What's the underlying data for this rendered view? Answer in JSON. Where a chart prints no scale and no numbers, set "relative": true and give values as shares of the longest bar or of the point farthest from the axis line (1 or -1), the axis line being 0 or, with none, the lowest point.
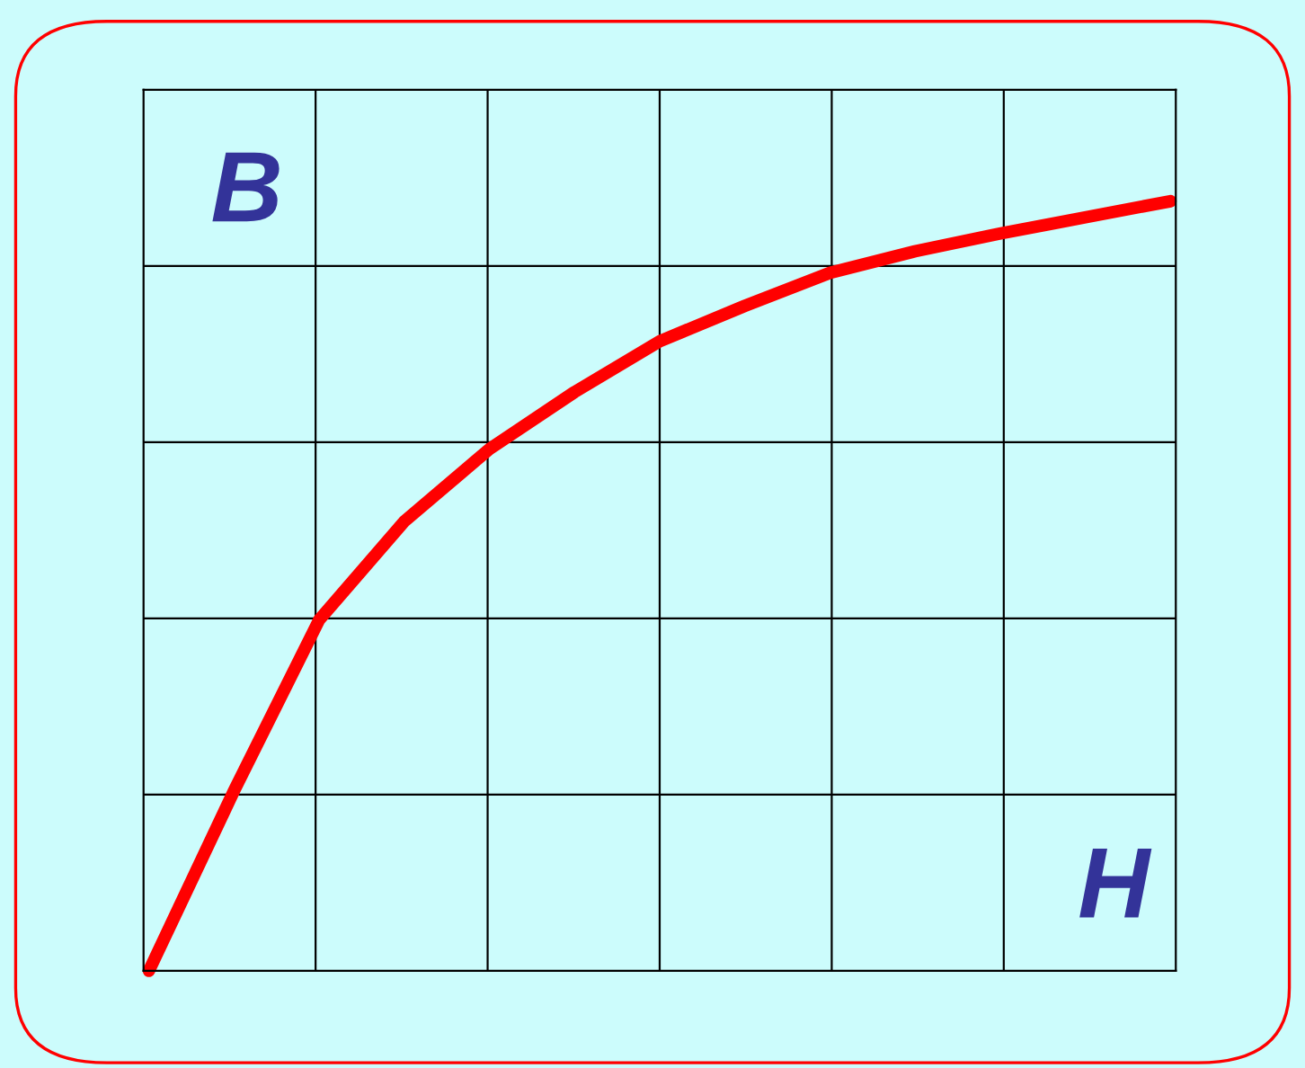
{
  "chart_data": {
    "type": "line",
    "relative": true,
    "xlabel": "H",
    "ylabel": "B",
    "categories": [
      null,
      null,
      null,
      null,
      null,
      null,
      null,
      null,
      null,
      null,
      null,
      null,
      null
    ],
    "series": [
      {
        "color": "#ff0000",
        "values": [
          0,
          0.234,
          0.456,
          0.584,
          0.678,
          0.752,
          0.818,
          0.864,
          0.907,
          0.935,
          0.958,
          0.979,
          1.0
        ]
      }
    ],
    "grid": true,
    "tick_labels": false,
    "marker": "none",
    "line_style": "solid"
  }
}
